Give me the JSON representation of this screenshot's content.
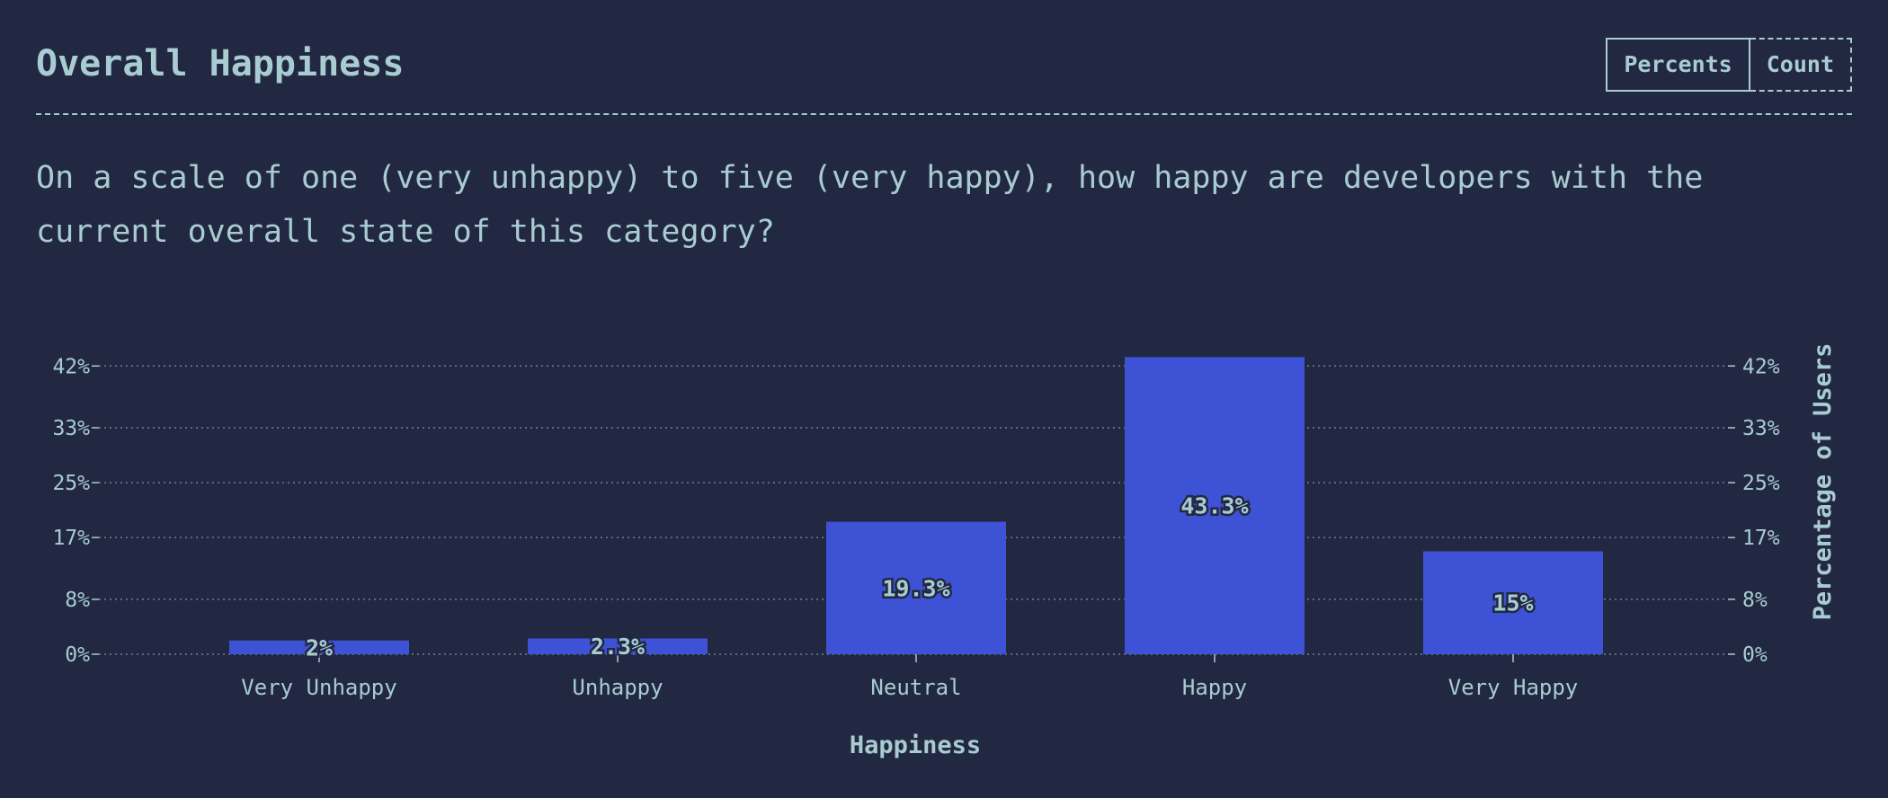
{
  "header": {
    "title": "Overall Happiness",
    "toggle": {
      "percents_label": "Percents",
      "count_label": "Count"
    }
  },
  "question": "On a scale of one (very unhappy) to five (very happy), how happy are developers with the current overall state of this category?",
  "colors": {
    "background": "#222841",
    "bar": "#3d52d5",
    "text": "#a8ccd2"
  },
  "chart_data": {
    "type": "bar",
    "categories": [
      "Very Unhappy",
      "Unhappy",
      "Neutral",
      "Happy",
      "Very Happy"
    ],
    "values": [
      2,
      2.3,
      19.3,
      43.3,
      15
    ],
    "value_labels": [
      "2%",
      "2.3%",
      "19.3%",
      "43.3%",
      "15%"
    ],
    "xlabel": "Happiness",
    "ylabel": "Percentage of Users",
    "yticks": [
      0,
      8,
      17,
      25,
      33,
      42
    ],
    "ytick_labels": [
      "0%",
      "8%",
      "17%",
      "25%",
      "33%",
      "42%"
    ],
    "ylim": [
      0,
      44
    ],
    "grid": true,
    "y_axis": "both-sides"
  }
}
